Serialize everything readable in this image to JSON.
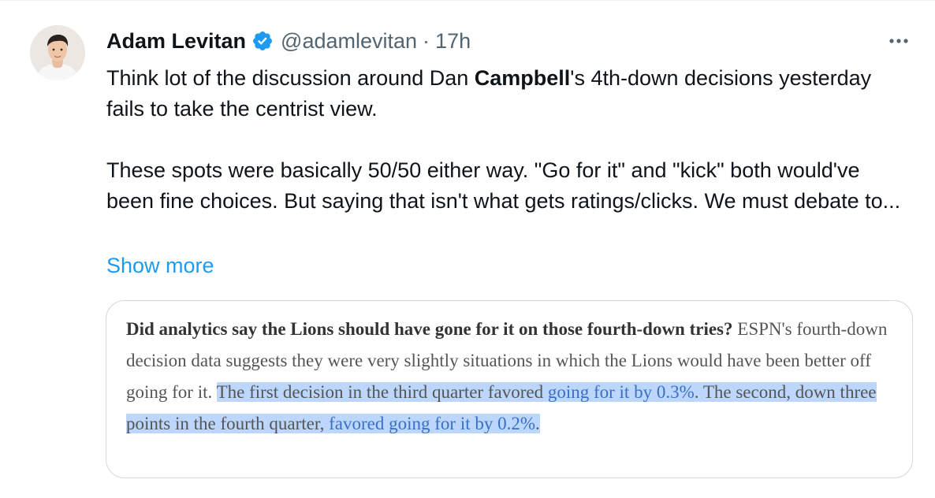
{
  "tweet": {
    "author": {
      "display_name": "Adam Levitan",
      "handle": "@adamlevitan",
      "verified": true
    },
    "separator": "·",
    "timestamp": "17h",
    "text": {
      "line1_before": "Think lot of the discussion around Dan ",
      "line1_bold": "Campbell",
      "line1_after": "'s 4th-down decisions yesterday fails to take the centrist view.",
      "para2": "These spots were basically 50/50 either way. \"Go for it\" and \"kick\" both would've been fine choices. But saying that isn't what gets ratings/clicks. We must debate to..."
    },
    "show_more": "Show more",
    "media": {
      "lead_bold": "Did analytics say the Lions should have gone for it on those fourth-down tries?",
      "body_plain": " ESPN's fourth-down decision data suggests they were very slightly situations in which the Lions would have been better off going for it. ",
      "hl_1": "The first decision in the third quarter favored ",
      "link_1": "going for it by 0.3%",
      "hl_2": ". The second, down three points in the fourth quarter, ",
      "link_2": "favored going for it by 0.2%",
      "hl_3": "."
    }
  },
  "icons": {
    "verified": "verified-badge-icon",
    "more": "more-horizontal-icon"
  },
  "colors": {
    "verified_blue": "#1d9bf0",
    "link_blue": "#1d9bf0",
    "secondary_text": "#536471",
    "highlight": "#bcd7fb"
  }
}
